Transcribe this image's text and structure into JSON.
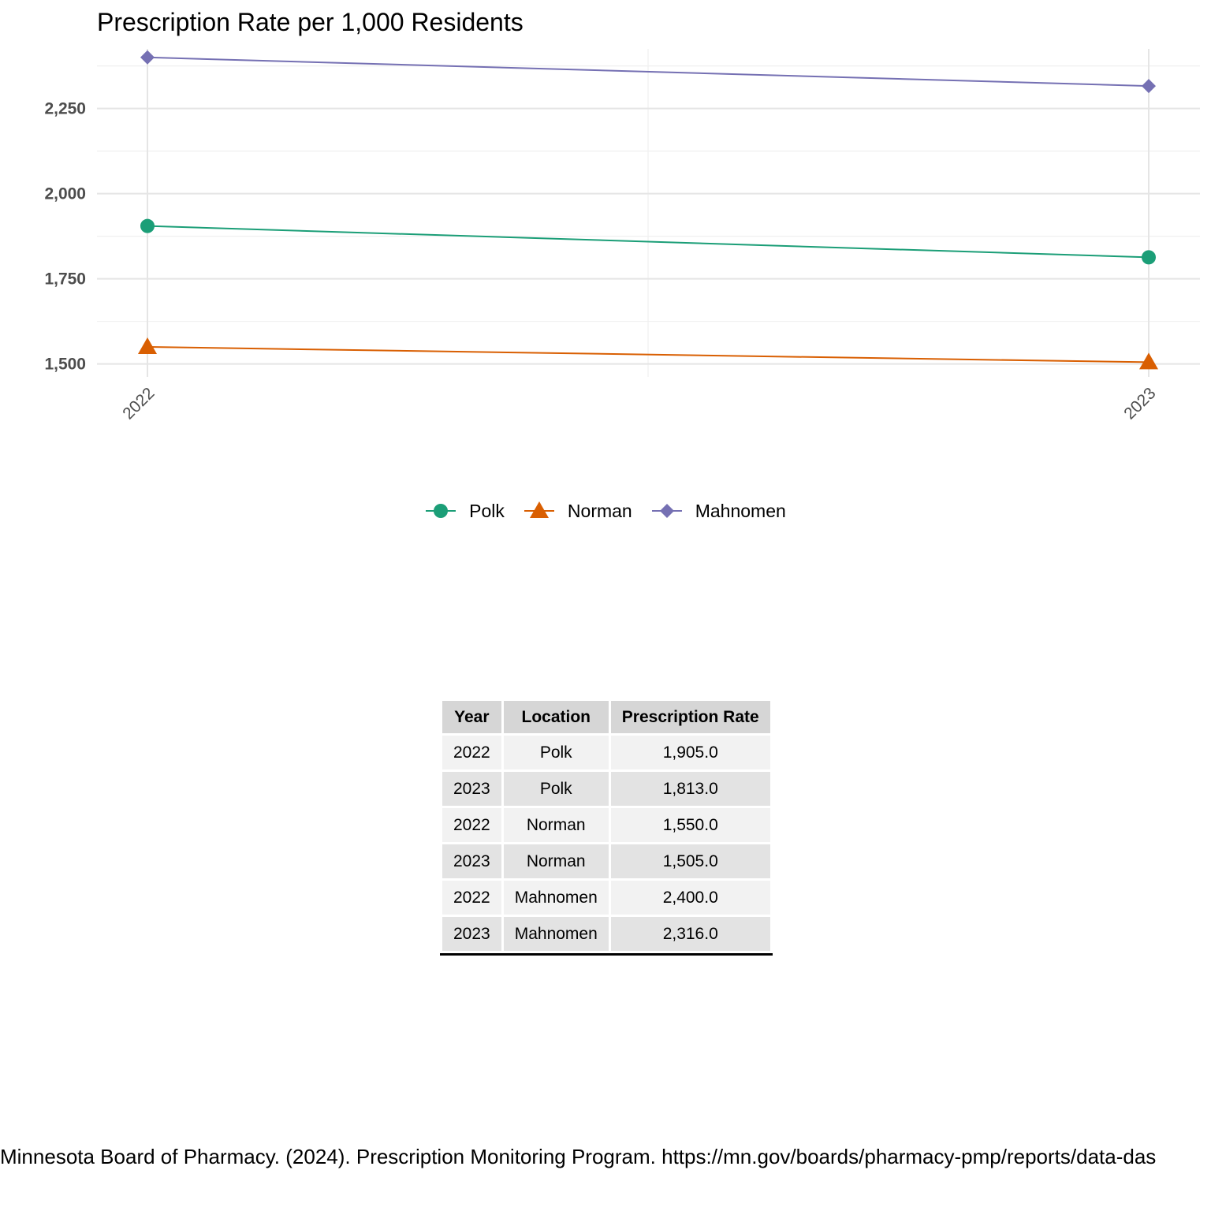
{
  "chart_data": {
    "type": "line",
    "title": "Prescription Rate per 1,000 Residents",
    "xlabel": "",
    "ylabel": "",
    "x": [
      2022,
      2023
    ],
    "x_tick_labels": [
      "2022",
      "2023"
    ],
    "ylim": [
      1462,
      2425
    ],
    "y_ticks": [
      1500,
      1750,
      2000,
      2250
    ],
    "y_tick_labels": [
      "1,500",
      "1,750",
      "2,000",
      "2,250"
    ],
    "grid": true,
    "legend_position": "bottom",
    "series": [
      {
        "name": "Polk",
        "values": [
          1905,
          1813
        ],
        "color": "#1b9e77",
        "marker": "circle"
      },
      {
        "name": "Norman",
        "values": [
          1550,
          1505
        ],
        "color": "#d95f02",
        "marker": "triangle"
      },
      {
        "name": "Mahnomen",
        "values": [
          2400,
          2316
        ],
        "color": "#7570b3",
        "marker": "diamond"
      }
    ]
  },
  "table": {
    "headers": [
      "Year",
      "Location",
      "Prescription Rate"
    ],
    "rows": [
      [
        "2022",
        "Polk",
        "1,905.0"
      ],
      [
        "2023",
        "Polk",
        "1,813.0"
      ],
      [
        "2022",
        "Norman",
        "1,550.0"
      ],
      [
        "2023",
        "Norman",
        "1,505.0"
      ],
      [
        "2022",
        "Mahnomen",
        "2,400.0"
      ],
      [
        "2023",
        "Mahnomen",
        "2,316.0"
      ]
    ]
  },
  "caption": "Minnesota Board of Pharmacy. (2024). Prescription Monitoring Program. https://mn.gov/boards/pharmacy-pmp/reports/data-das"
}
